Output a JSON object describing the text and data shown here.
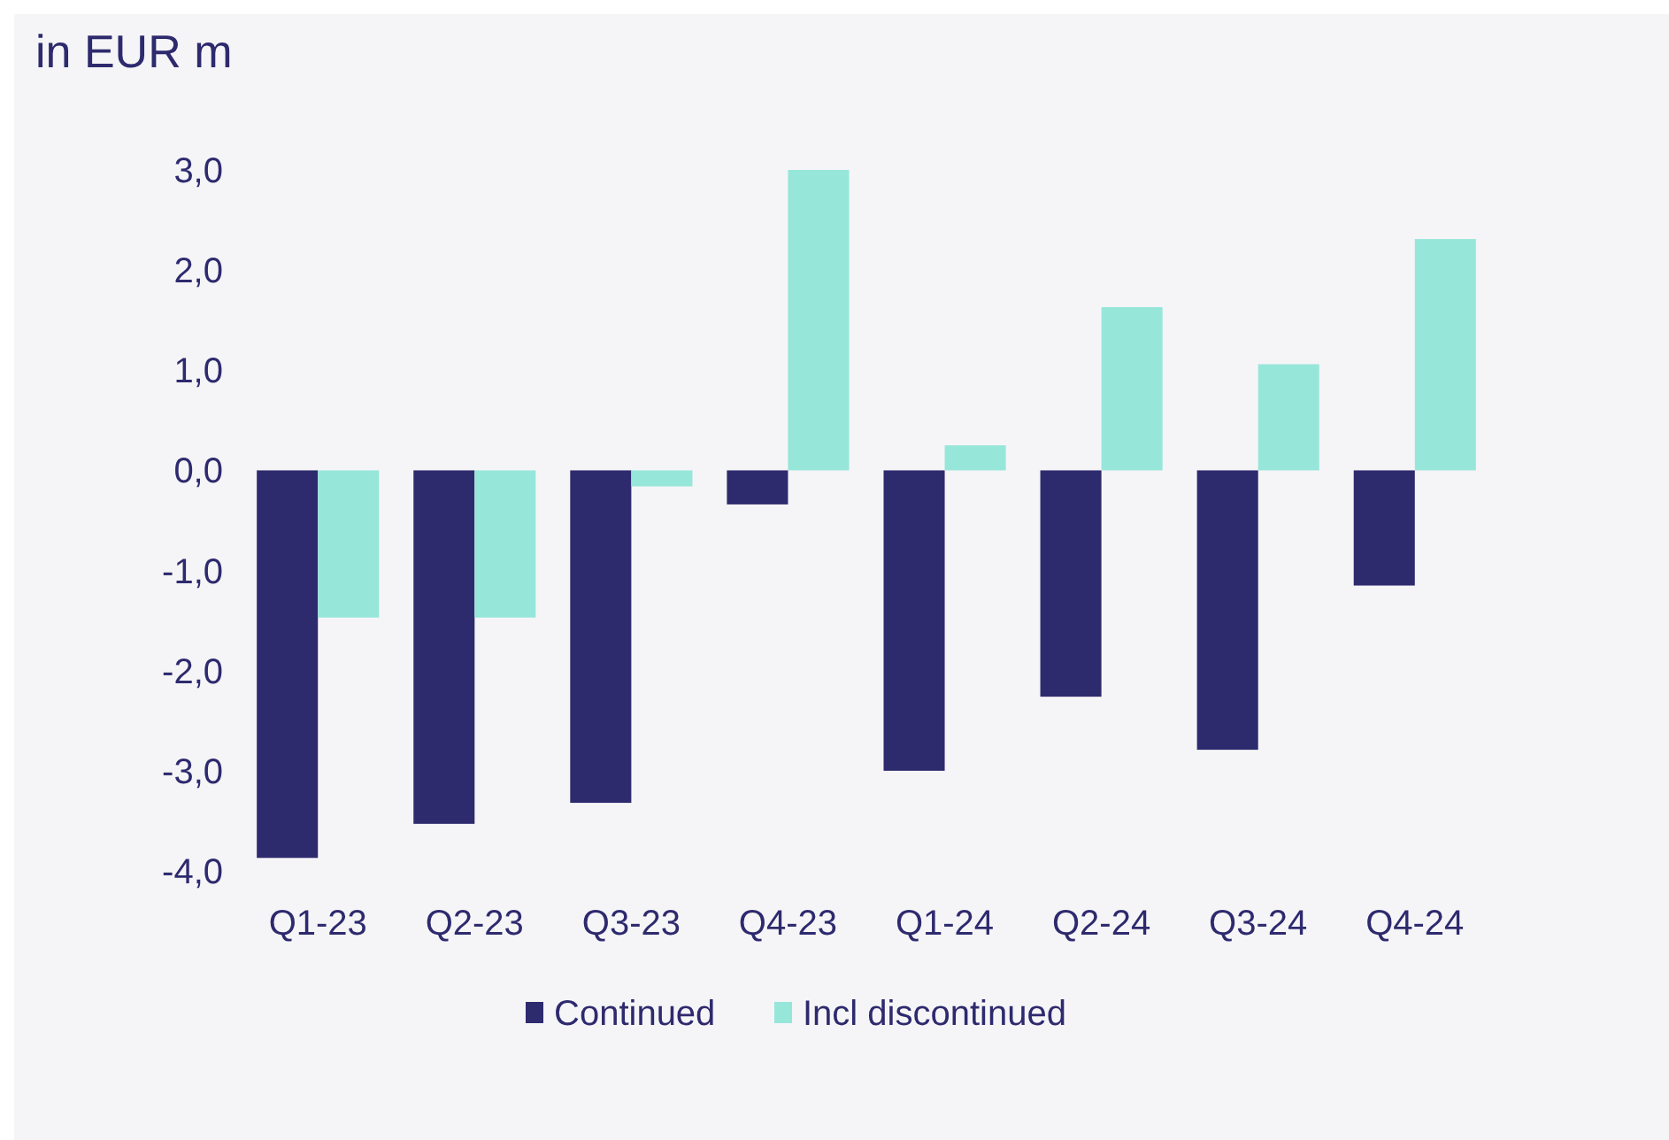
{
  "chart_data": {
    "type": "bar",
    "ylabel": "in EUR m",
    "categories": [
      "Q1-23",
      "Q2-23",
      "Q3-23",
      "Q4-23",
      "Q1-24",
      "Q2-24",
      "Q3-24",
      "Q4-24"
    ],
    "series": [
      {
        "name": "Continued",
        "color": "#2e2a6e",
        "values": [
          -3.87,
          -3.53,
          -3.32,
          -0.34,
          -3.0,
          -2.26,
          -2.79,
          -1.15
        ]
      },
      {
        "name": "Incl discontinued",
        "color": "#97e6da",
        "values": [
          -1.47,
          -1.47,
          -0.16,
          3.0,
          0.25,
          1.63,
          1.06,
          2.31
        ]
      }
    ],
    "ylim": [
      -4,
      3
    ],
    "yticks": [
      {
        "value": -4,
        "label": "-4,0"
      },
      {
        "value": -3,
        "label": "-3,0"
      },
      {
        "value": -2,
        "label": "-2,0"
      },
      {
        "value": -1,
        "label": "-1,0"
      },
      {
        "value": 0,
        "label": "0,0"
      },
      {
        "value": 1,
        "label": "1,0"
      },
      {
        "value": 2,
        "label": "2,0"
      },
      {
        "value": 3,
        "label": "3,0"
      }
    ],
    "grid": false,
    "legend": "bottom"
  }
}
